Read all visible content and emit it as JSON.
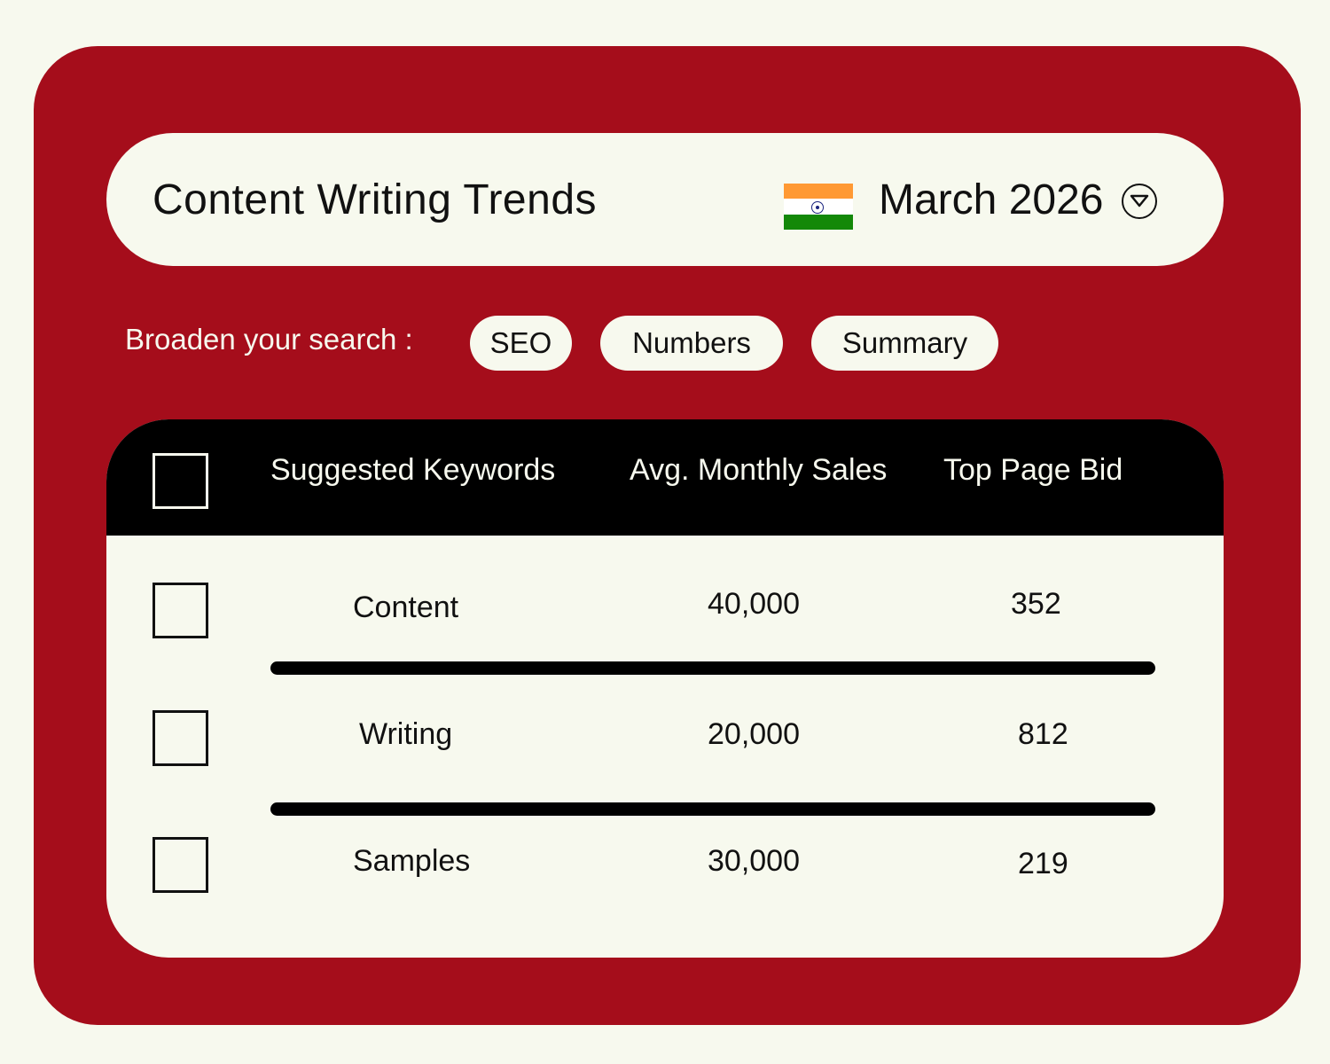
{
  "header": {
    "title": "Content Writing Trends",
    "country_flag": "india-flag-icon",
    "date_selector": {
      "value": "March 2026",
      "icon": "chevron-down-circle-icon"
    }
  },
  "filters": {
    "label": "Broaden your search :",
    "chips": [
      "SEO",
      "Numbers",
      "Summary"
    ]
  },
  "table": {
    "columns": [
      "Suggested Keywords",
      "Avg. Monthly Sales",
      "Top Page Bid"
    ],
    "rows": [
      {
        "keyword": "Content",
        "sales": "40,000",
        "bid": "352",
        "checked": false
      },
      {
        "keyword": "Writing",
        "sales": "20,000",
        "bid": "812",
        "checked": false
      },
      {
        "keyword": "Samples",
        "sales": "30,000",
        "bid": "219",
        "checked": false
      }
    ]
  },
  "colors": {
    "background": "#f7f9ee",
    "card": "#a50d1b",
    "table_header": "#000000",
    "flag_saffron": "#ff9933",
    "flag_green": "#138808"
  }
}
